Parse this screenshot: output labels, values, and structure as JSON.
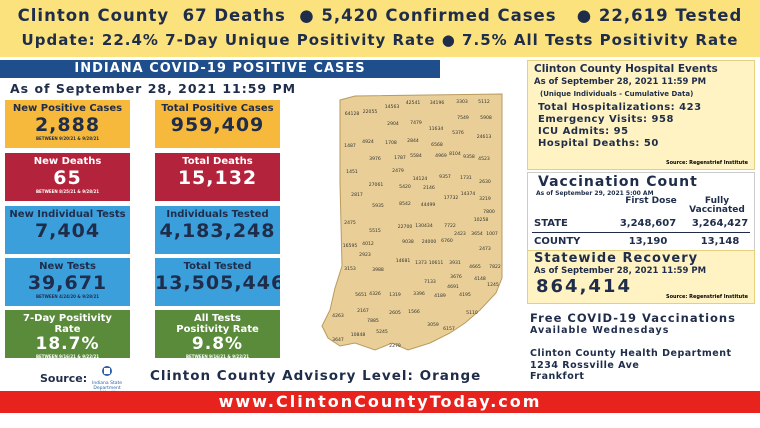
{
  "banner": {
    "line1": "Clinton County  67 Deaths  ● 5,420 Confirmed Cases   ● 22,619 Tested",
    "line2": "Update: 22.4% 7-Day Unique Positivity Rate ● 7.5% All Tests Positivity Rate"
  },
  "header": {
    "title": "INDIANA COVID-19 POSITIVE CASES",
    "as_of": "As of September 28, 2021 11:59 PM"
  },
  "tiles": [
    {
      "label": "New Positive Cases",
      "value": "2,888",
      "note": "BETWEEN 9/20/21 & 9/28/21"
    },
    {
      "label": "Total Positive Cases",
      "value": "959,409"
    },
    {
      "label": "New Deaths",
      "value": "65",
      "note": "BETWEEN 8/25/21 & 9/28/21"
    },
    {
      "label": "Total Deaths",
      "value": "15,132"
    },
    {
      "label": "New Individual Tests",
      "value": "7,404"
    },
    {
      "label": "Individuals Tested",
      "value": "4,183,248"
    },
    {
      "label": "New Tests",
      "value": "39,671",
      "note": "BETWEEN 4/24/20 & 9/28/21"
    },
    {
      "label": "Total Tested",
      "value": "13,505,446"
    },
    {
      "label": "7-Day Positivity Rate",
      "value": "18.7%",
      "note": "BETWEEN 9/16/21 & 9/22/21"
    },
    {
      "label": "All Tests Positivity Rate",
      "value": "9.8%",
      "note": "BETWEEN 9/16/21 & 9/22/21"
    }
  ],
  "source": {
    "label": "Source:",
    "logo": "Indiana State Department of Health"
  },
  "advisory": "Clinton County Advisory Level: Orange",
  "footer": "www.ClintonCountyToday.com",
  "map": {
    "counties": [
      "64128",
      "22055",
      "14563",
      "42541",
      "34196",
      "3303",
      "5112",
      "2904",
      "7479",
      "7549",
      "5908",
      "1487",
      "4924",
      "1708",
      "2844",
      "11634",
      "5376",
      "24613",
      "6568",
      "3976",
      "1787",
      "5584",
      "4969",
      "8104",
      "9358",
      "4523",
      "2479",
      "14124",
      "9357",
      "1731",
      "2630",
      "1451",
      "27061",
      "5420",
      "2146",
      "14374",
      "3219",
      "2817",
      "5935",
      "8542",
      "44499",
      "17732",
      "7800",
      "10258",
      "2475",
      "5515",
      "22700",
      "130434",
      "7722",
      "2423",
      "3654",
      "1007",
      "16595",
      "4012",
      "9038",
      "24000",
      "6760",
      "2473",
      "2923",
      "14681",
      "1373",
      "10611",
      "3931",
      "3153",
      "3988",
      "4665",
      "7822",
      "3676",
      "4148",
      "1245",
      "7133",
      "4691",
      "5651",
      "4326",
      "1319",
      "3396",
      "4189",
      "4195",
      "4263",
      "2167",
      "2605",
      "1566",
      "5110",
      "7885",
      "3059",
      "6157",
      "3647",
      "10848",
      "5245",
      "2279"
    ]
  },
  "hospital": {
    "title": "Clinton County Hospital Events",
    "as_of": "As of September 28, 2021 11:59 PM",
    "note": "(Unique Individuals - Cumulative Data)",
    "lines": [
      "Total Hospitalizations: 423",
      "Emergency Visits: 958",
      "ICU Admits: 95",
      "Hospital Deaths: 50"
    ],
    "source": "Source: Regenstrief Institute"
  },
  "vaccination": {
    "title": "Vaccination Count",
    "as_of": "As of September 29, 2021 5:00 AM",
    "columns": [
      "First Dose",
      "Fully Vaccinated"
    ],
    "rows": [
      [
        "STATE",
        "3,248,607",
        "3,264,427"
      ],
      [
        "COUNTY",
        "13,190",
        "13,148"
      ]
    ]
  },
  "recovery": {
    "title": "Statewide Recovery",
    "as_of": "As of September 28, 2021 11:59 PM",
    "value": "864,414",
    "source": "Source: Regenstrief Institute"
  },
  "info": {
    "lines": [
      "Free COVID-19 Vaccinations",
      "Available Wednesdays"
    ],
    "address": [
      "Clinton County Health Department",
      "1234 Rossville Ave",
      "Frankfort"
    ]
  }
}
